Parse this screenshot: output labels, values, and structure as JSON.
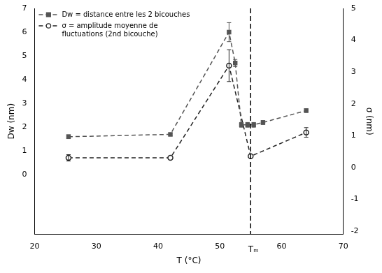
{
  "chart_data": {
    "type": "line",
    "x_label": "T (°C)",
    "y_label": "Dw (nm)",
    "y2_label": "σ (nm)",
    "xlim": [
      20,
      70
    ],
    "xticks": [
      20,
      30,
      40,
      50,
      60,
      70
    ],
    "ylim": [
      -2.5,
      7
    ],
    "yticks": [
      0,
      1,
      2,
      3,
      4,
      5,
      6,
      7
    ],
    "y2lim": [
      -2.1,
      5
    ],
    "y2ticks": [
      -2,
      -1,
      0,
      1,
      2,
      3,
      4,
      5
    ],
    "grid": false,
    "legend": "upper left",
    "series": [
      {
        "name": "Dw = distance entre les 2 bicouches",
        "color": "#555555",
        "marker": "square",
        "line_style": "dashed",
        "x": [
          25.5,
          42,
          51.5,
          52.5,
          53.5,
          54.5,
          55.5,
          57,
          64
        ],
        "values": [
          1.6,
          1.7,
          6.0,
          4.7,
          2.1,
          2.1,
          2.1,
          2.2,
          2.7
        ],
        "errors": [
          0.08,
          0.05,
          0.4,
          0.15,
          0.1,
          0.1,
          0.1,
          0.08,
          0.08
        ]
      },
      {
        "name": "σ = amplitude moyenne de fluctuations (2nd bicouche)",
        "color": "#222222",
        "marker": "circle",
        "line_style": "dashed",
        "axis": "y2",
        "x": [
          25.5,
          42,
          51.5,
          55,
          64
        ],
        "values": [
          0.3,
          0.3,
          3.2,
          0.35,
          1.1
        ],
        "errors": [
          0.1,
          null,
          0.5,
          null,
          0.15
        ]
      }
    ],
    "annotations": [
      {
        "x": 55,
        "label": "Tₘ"
      }
    ]
  }
}
